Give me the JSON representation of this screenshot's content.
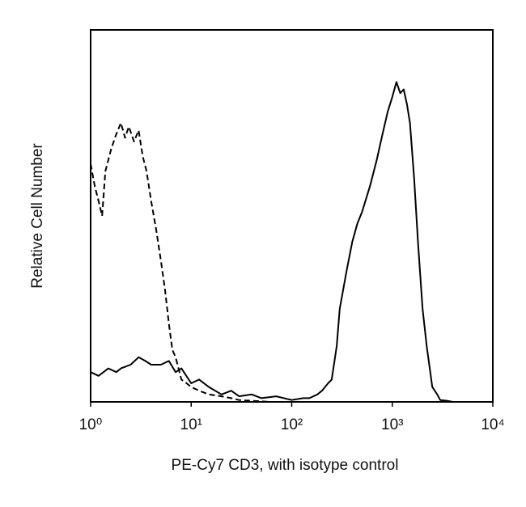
{
  "chart_data": {
    "type": "line",
    "x_label": "PE-Cy7 CD3, with isotype control",
    "y_label": "Relative Cell Number",
    "xscale": "log",
    "xlim": [
      1,
      10000
    ],
    "ylim": [
      0,
      100
    ],
    "xticks": [
      {
        "value": 1,
        "label": "10⁰"
      },
      {
        "value": 10,
        "label": "10¹"
      },
      {
        "value": 100,
        "label": "10²"
      },
      {
        "value": 1000,
        "label": "10³"
      },
      {
        "value": 10000,
        "label": "10⁴"
      }
    ],
    "series": [
      {
        "color": "#000000",
        "dashed": true,
        "x": [
          1,
          1.1,
          1.2,
          1.3,
          1.4,
          1.6,
          1.8,
          2,
          2.2,
          2.4,
          2.7,
          3,
          3.3,
          3.6,
          4,
          4.5,
          5,
          5.5,
          6,
          6.5,
          7,
          8,
          9,
          10,
          12,
          15,
          20,
          25,
          30,
          40,
          60
        ],
        "values": [
          64,
          58,
          54,
          50,
          62,
          68,
          72,
          75,
          71,
          74,
          70,
          73,
          66,
          62,
          54,
          46,
          38,
          30,
          21,
          14,
          12,
          6,
          5,
          4,
          3,
          2,
          1.5,
          1,
          0.5,
          0.3,
          0
        ]
      },
      {
        "color": "#000000",
        "dashed": false,
        "x": [
          1,
          1.2,
          1.5,
          1.8,
          2,
          2.5,
          3,
          3.5,
          4,
          5,
          6,
          7,
          8,
          10,
          12,
          15,
          20,
          25,
          30,
          40,
          50,
          70,
          100,
          130,
          150,
          180,
          200,
          230,
          250,
          280,
          300,
          350,
          400,
          450,
          500,
          600,
          700,
          800,
          900,
          1000,
          1100,
          1200,
          1300,
          1400,
          1500,
          1650,
          1800,
          2000,
          2200,
          2500,
          2800,
          3000,
          3500,
          4000
        ],
        "values": [
          8,
          7,
          9,
          8,
          9,
          10,
          12,
          11,
          10,
          10,
          11,
          8,
          9,
          5,
          6,
          4,
          2,
          3,
          1.5,
          2,
          1,
          1.5,
          0.5,
          1,
          1,
          2,
          3,
          5,
          6,
          15,
          25,
          35,
          43,
          48,
          51,
          58,
          65,
          72,
          78,
          82,
          86,
          83,
          84,
          80,
          75,
          60,
          43,
          25,
          15,
          4,
          2,
          0.5,
          0.3,
          0
        ]
      }
    ]
  }
}
